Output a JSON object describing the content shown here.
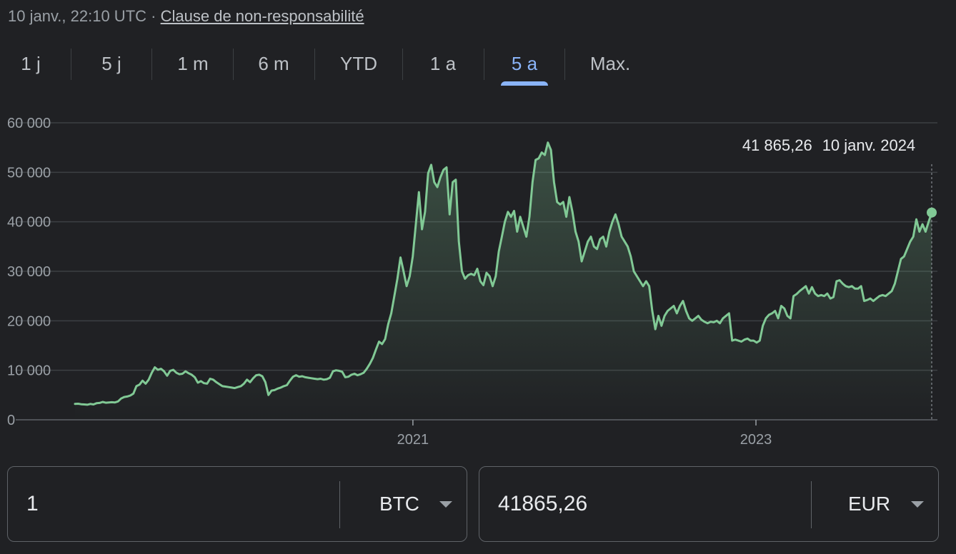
{
  "header": {
    "timestamp": "10 janv., 22:10 UTC",
    "separator": "·",
    "disclaimer": "Clause de non-responsabilité"
  },
  "tabs": [
    {
      "label": "1 j",
      "active": false
    },
    {
      "label": "5 j",
      "active": false
    },
    {
      "label": "1 m",
      "active": false
    },
    {
      "label": "6 m",
      "active": false
    },
    {
      "label": "YTD",
      "active": false
    },
    {
      "label": "1 a",
      "active": false
    },
    {
      "label": "5 a",
      "active": true
    },
    {
      "label": "Max.",
      "active": false
    }
  ],
  "tooltip": {
    "value": "41 865,26",
    "date": "10 janv. 2024"
  },
  "converter": {
    "from": {
      "amount": "1",
      "currency": "BTC"
    },
    "to": {
      "amount": "41865,26",
      "currency": "EUR"
    }
  },
  "colors": {
    "line": "#81c995",
    "grid": "#3c4043",
    "active_tab": "#8ab4f8",
    "background": "#202124"
  },
  "chart_data": {
    "type": "area",
    "x_start": "2019-01-13",
    "x_end": "2024-01-10",
    "x_ticks": [
      {
        "label": "2021",
        "date": "2021-01-01"
      },
      {
        "label": "2023",
        "date": "2023-01-01"
      }
    ],
    "y_ticks": [
      "0",
      "10 000",
      "20 000",
      "30 000",
      "40 000",
      "50 000",
      "60 000"
    ],
    "ylim": [
      0,
      60000
    ],
    "grid": true,
    "series": [
      {
        "values": [
          3200,
          3250,
          3150,
          3100,
          3050,
          3200,
          3100,
          3350,
          3400,
          3600,
          3450,
          3500,
          3550,
          3500,
          3700,
          4300,
          4600,
          4700,
          4900,
          5300,
          6800,
          7100,
          7900,
          7300,
          8100,
          9500,
          10600,
          10100,
          10300,
          9800,
          8900,
          9900,
          10100,
          9500,
          9200,
          9300,
          9800,
          9400,
          9100,
          8600,
          7500,
          7800,
          7400,
          7300,
          8300,
          8100,
          7600,
          7200,
          6800,
          6700,
          6600,
          6500,
          6400,
          6600,
          6800,
          7300,
          8100,
          7600,
          8400,
          9000,
          9100,
          8800,
          7600,
          5000,
          5900,
          6000,
          6300,
          6500,
          6800,
          7000,
          7900,
          8700,
          9000,
          8700,
          8800,
          8600,
          8500,
          8400,
          8300,
          8200,
          8300,
          8100,
          8200,
          8500,
          9800,
          10000,
          9900,
          9700,
          8600,
          8700,
          9100,
          9300,
          9000,
          9200,
          9500,
          10300,
          11300,
          12500,
          14200,
          15800,
          15300,
          16300,
          19300,
          21500,
          25000,
          28500,
          32800,
          30000,
          27000,
          29000,
          33000,
          39500,
          46000,
          38500,
          42000,
          49800,
          51500,
          48000,
          47000,
          49000,
          50500,
          51000,
          41500,
          48000,
          48500,
          36000,
          30000,
          28500,
          29200,
          29500,
          29200,
          30500,
          28000,
          27200,
          29700,
          29000,
          27000,
          29000,
          34000,
          37000,
          40000,
          42000,
          41000,
          42200,
          38000,
          41000,
          39000,
          37000,
          41000,
          48000,
          52500,
          52800,
          54000,
          53500,
          56000,
          54500,
          48000,
          44000,
          43500,
          44000,
          41000,
          45000,
          42000,
          38000,
          36000,
          32000,
          34000,
          36000,
          37000,
          35000,
          34500,
          36500,
          37000,
          35000,
          38000,
          40000,
          41500,
          39500,
          37000,
          36000,
          35000,
          33000,
          30000,
          29000,
          28000,
          27000,
          28000,
          27000,
          22000,
          18300,
          21000,
          19000,
          21000,
          22000,
          22500,
          23000,
          21500,
          23000,
          24000,
          22000,
          20500,
          20000,
          20500,
          21000,
          20200,
          19800,
          19500,
          19800,
          19700,
          20000,
          19500,
          20500,
          21000,
          21500,
          16000,
          16200,
          16000,
          15800,
          16200,
          16400,
          16000,
          16000,
          15600,
          16000,
          19000,
          20500,
          21200,
          21500,
          22000,
          20500,
          23000,
          22500,
          21000,
          20500,
          25000,
          25400,
          26000,
          26500,
          27000,
          25500,
          26800,
          25500,
          25000,
          25200,
          25000,
          25500,
          24500,
          24800,
          28000,
          28200,
          27500,
          27000,
          26800,
          27000,
          26500,
          26500,
          27000,
          24000,
          24200,
          24500,
          24000,
          24500,
          25000,
          25200,
          25000,
          25500,
          26000,
          27500,
          30000,
          32500,
          33000,
          34500,
          36000,
          37000,
          40500,
          38000,
          39500,
          38000,
          40000,
          41865.26
        ]
      }
    ]
  }
}
